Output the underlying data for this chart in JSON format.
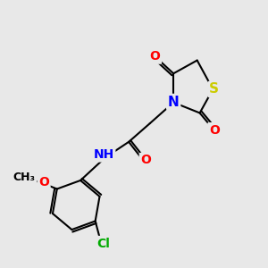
{
  "background_color": "#e8e8e8",
  "atom_colors": {
    "C": "#000000",
    "N": "#0000ff",
    "O": "#ff0000",
    "S": "#cccc00",
    "Cl": "#00aa00",
    "H": "#888888"
  },
  "bond_color": "#000000",
  "bond_width": 1.5,
  "font_size": 10,
  "fig_size": [
    3.0,
    3.0
  ],
  "dpi": 100
}
